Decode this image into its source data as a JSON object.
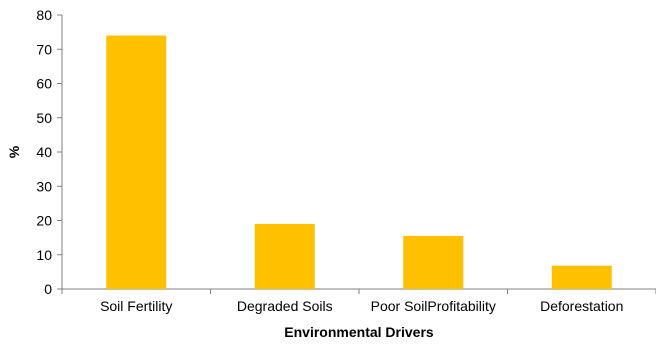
{
  "chart_data": {
    "type": "bar",
    "title": "",
    "xlabel": "Environmental Drivers",
    "ylabel": "%",
    "categories": [
      "Soil Fertility",
      "Degraded Soils",
      "Poor SoilProfitability",
      "Deforestation"
    ],
    "values": [
      74,
      19,
      15.5,
      6.8
    ],
    "ylim": [
      0,
      80
    ],
    "yticks": [
      0,
      10,
      20,
      30,
      40,
      50,
      60,
      70,
      80
    ],
    "grid": false,
    "legend": "none",
    "bar_color": "#FFC000",
    "axis_color": "#808080"
  }
}
